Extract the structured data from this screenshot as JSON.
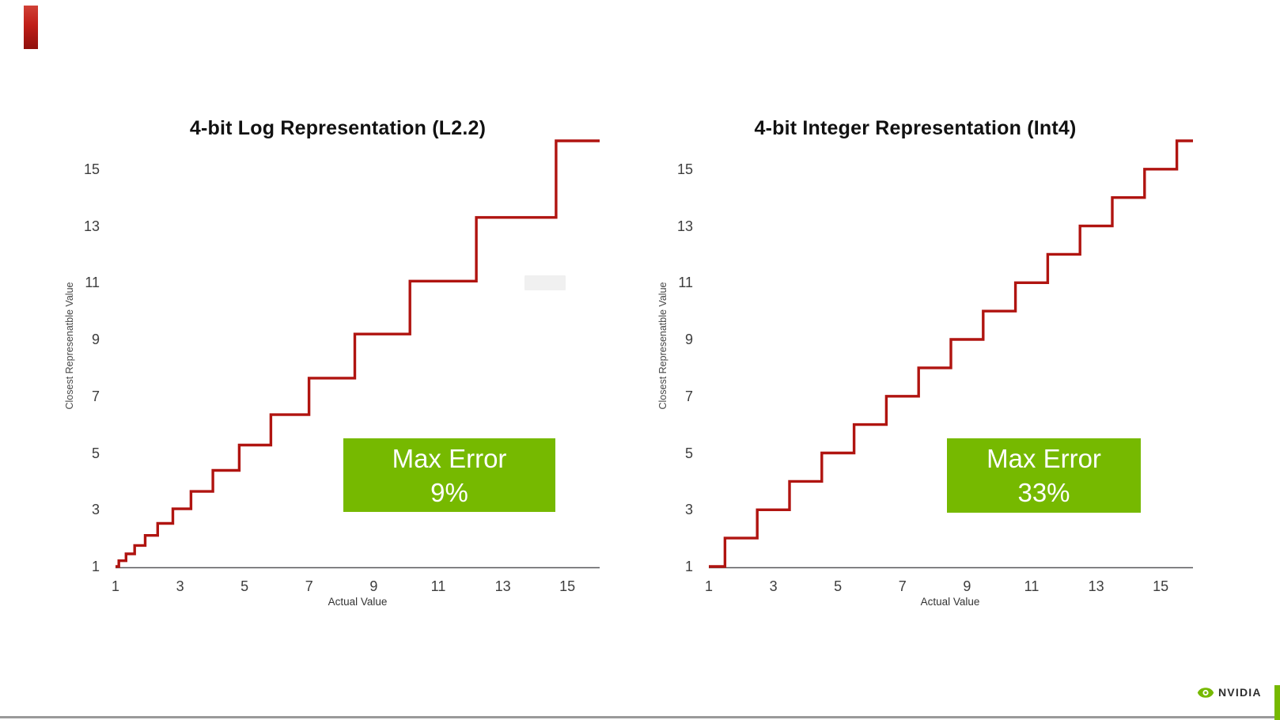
{
  "slide": {
    "background": "#ffffff",
    "nvidia_green": "#76b900",
    "curve_red": "#b01410",
    "top_left_marker_color": "#c01e18",
    "bottom_rule_color": "#9a9a9a",
    "erased_patch_color": "#f0f0f0"
  },
  "branding": {
    "logo_text": "NVIDIA"
  },
  "chart_data": [
    {
      "type": "line",
      "subtype": "step",
      "title": "4-bit Log Representation (L2.2)",
      "xlabel": "Actual Value",
      "ylabel": "Closest Represenatble Value",
      "xlim": [
        1,
        16
      ],
      "ylim": [
        1,
        16
      ],
      "xticks": [
        1,
        3,
        5,
        7,
        9,
        11,
        13,
        15
      ],
      "yticks": [
        1,
        3,
        5,
        7,
        9,
        11,
        13,
        15
      ],
      "grid": false,
      "legend": null,
      "line_color": "#b01410",
      "axis_color": "#58585b",
      "levels": [
        1,
        1.203,
        1.447,
        1.741,
        2.095,
        2.52,
        3.031,
        3.647,
        4.387,
        5.278,
        6.35,
        7.639,
        9.19,
        11.055,
        13.3,
        16
      ],
      "step_positions": [
        1.102,
        1.325,
        1.594,
        1.918,
        2.307,
        2.776,
        3.339,
        4.017,
        4.833,
        5.814,
        6.994,
        8.414,
        10.123,
        12.178,
        14.65
      ],
      "annotation": {
        "line1": "Max Error",
        "line2": "9%",
        "bg": "#76b900",
        "text_color": "#ffffff"
      }
    },
    {
      "type": "line",
      "subtype": "step",
      "title": "4-bit Integer Representation (Int4)",
      "xlabel": "Actual Value",
      "ylabel": "Closest Represenatble Value",
      "xlim": [
        1,
        16
      ],
      "ylim": [
        1,
        16
      ],
      "xticks": [
        1,
        3,
        5,
        7,
        9,
        11,
        13,
        15
      ],
      "yticks": [
        1,
        3,
        5,
        7,
        9,
        11,
        13,
        15
      ],
      "grid": false,
      "legend": null,
      "line_color": "#b01410",
      "axis_color": "#58585b",
      "levels": [
        1,
        2,
        3,
        4,
        5,
        6,
        7,
        8,
        9,
        10,
        11,
        12,
        13,
        14,
        15,
        16
      ],
      "step_positions": [
        1.5,
        2.5,
        3.5,
        4.5,
        5.5,
        6.5,
        7.5,
        8.5,
        9.5,
        10.5,
        11.5,
        12.5,
        13.5,
        14.5,
        15.5
      ],
      "annotation": {
        "line1": "Max Error",
        "line2": "33%",
        "bg": "#76b900",
        "text_color": "#ffffff"
      }
    }
  ]
}
